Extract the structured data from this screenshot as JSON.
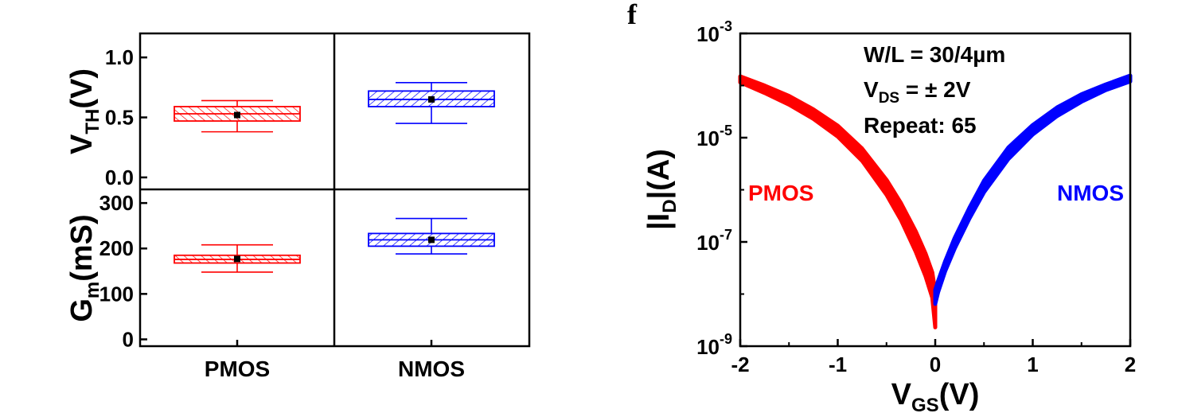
{
  "panel_letter": "f",
  "colors": {
    "pmos": "#ff0000",
    "nmos": "#0000ff",
    "axis": "#000000"
  },
  "chart_data": [
    {
      "type": "box",
      "subplots": [
        {
          "ylabel": {
            "main": "V",
            "sub": "TH",
            "rest": "(V)"
          },
          "ylim": [
            -0.1,
            1.2
          ],
          "yticks": [
            "0.0",
            "0.5",
            "1.0"
          ],
          "ytick_values": [
            0.0,
            0.5,
            1.0
          ],
          "categories": [
            "PMOS",
            "NMOS"
          ],
          "boxes": [
            {
              "name": "PMOS",
              "whisker_low": 0.38,
              "q1": 0.47,
              "median": 0.53,
              "q3": 0.59,
              "whisker_high": 0.64,
              "mean": 0.52
            },
            {
              "name": "NMOS",
              "whisker_low": 0.45,
              "q1": 0.59,
              "median": 0.65,
              "q3": 0.72,
              "whisker_high": 0.79,
              "mean": 0.65
            }
          ]
        },
        {
          "ylabel": {
            "main": "G",
            "sub": "m",
            "rest": "(mS)"
          },
          "ylim": [
            -15,
            330
          ],
          "yticks": [
            "0",
            "100",
            "200",
            "300"
          ],
          "ytick_values": [
            0,
            100,
            200,
            300
          ],
          "categories": [
            "PMOS",
            "NMOS"
          ],
          "boxes": [
            {
              "name": "PMOS",
              "whisker_low": 148,
              "q1": 168,
              "median": 176,
              "q3": 185,
              "whisker_high": 208,
              "mean": 177
            },
            {
              "name": "NMOS",
              "whisker_low": 188,
              "q1": 205,
              "median": 219,
              "q3": 233,
              "whisker_high": 266,
              "mean": 219
            }
          ]
        }
      ],
      "x_categories": [
        "PMOS",
        "NMOS"
      ]
    },
    {
      "type": "line",
      "x_range": [
        -2,
        2
      ],
      "y_scale": "log",
      "ylim": [
        1e-09,
        0.001
      ],
      "xticks": [
        "-2",
        "-1",
        "0",
        "1",
        "2"
      ],
      "xtick_values": [
        -2,
        -1,
        0,
        1,
        2
      ],
      "yticks": [
        {
          "base": "10",
          "exp": "-9",
          "value": 1e-09
        },
        {
          "base": "10",
          "exp": "-7",
          "value": 1e-07
        },
        {
          "base": "10",
          "exp": "-5",
          "value": 1e-05
        },
        {
          "base": "10",
          "exp": "-3",
          "value": 0.001
        }
      ],
      "xlabel": {
        "main": "V",
        "sub": "GS",
        "rest": "(V)"
      },
      "ylabel": {
        "pre": "|I",
        "sub": "D",
        "rest": "|(A)"
      },
      "annotations": {
        "wl": "W/L = 30/4µm",
        "vds_main": "V",
        "vds_sub": "DS",
        "vds_rest": " = ± 2V",
        "repeat": "Repeat: 65"
      },
      "series": [
        {
          "name": "PMOS",
          "color": "#ff0000",
          "x": [
            -2.0,
            -1.75,
            -1.5,
            -1.25,
            -1.0,
            -0.75,
            -0.5,
            -0.35,
            -0.2,
            -0.1,
            -0.03,
            0.0
          ],
          "y_lower": [
            0.000115,
            7.2e-05,
            4.3e-05,
            2.3e-05,
            1.05e-05,
            3.6e-06,
            8e-07,
            2.6e-07,
            6.5e-08,
            2.2e-08,
            8.5e-09,
            2.3e-09
          ],
          "y_upper": [
            0.00015,
            0.0001,
            6.3e-05,
            3.5e-05,
            1.7e-05,
            6.2e-06,
            1.55e-06,
            5.5e-07,
            1.6e-07,
            6e-08,
            2.6e-08,
            1.1e-08
          ]
        },
        {
          "name": "NMOS",
          "color": "#0000ff",
          "x": [
            0.0,
            0.03,
            0.1,
            0.2,
            0.35,
            0.5,
            0.75,
            1.0,
            1.25,
            1.5,
            1.75,
            2.0
          ],
          "y_lower": [
            6.5e-09,
            1.1e-08,
            2.7e-08,
            7.5e-08,
            2.8e-07,
            9e-07,
            3.9e-06,
            1.15e-05,
            2.6e-05,
            4.9e-05,
            8.2e-05,
            0.00012
          ],
          "y_upper": [
            1.2e-08,
            1.8e-08,
            4.2e-08,
            1.2e-07,
            4.5e-07,
            1.5e-06,
            6.5e-06,
            1.75e-05,
            3.8e-05,
            6.8e-05,
            0.000105,
            0.000155
          ]
        }
      ]
    }
  ]
}
